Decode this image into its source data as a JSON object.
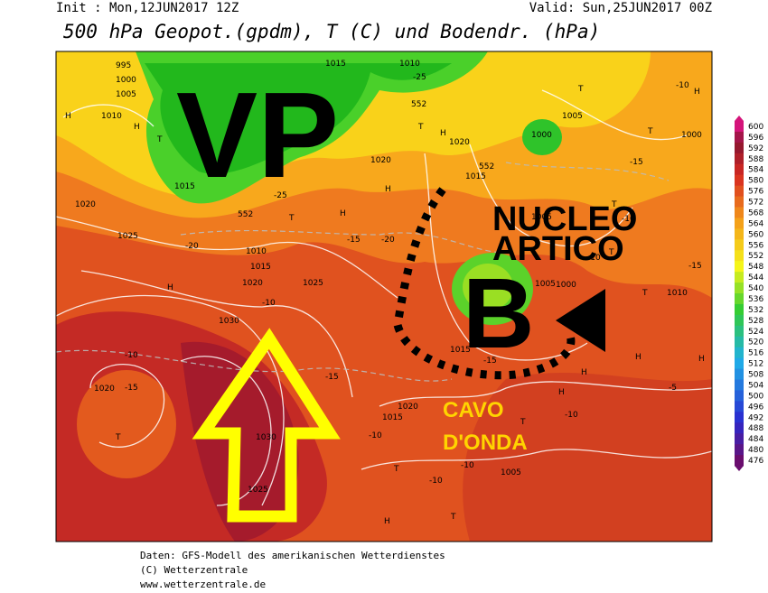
{
  "header": {
    "init": "Init : Mon,12JUN2017 12Z",
    "valid": "Valid: Sun,25JUN2017 00Z",
    "title": "500 hPa Geopot.(gpdm), T (C) und Bodendr. (hPa)"
  },
  "annotations": {
    "vp": "VP",
    "nucleo": "NUCLEO",
    "artico": "ARTICO",
    "b": "B",
    "cavo": "CAVO",
    "onda": "D'ONDA"
  },
  "legend": {
    "values": [
      600,
      596,
      592,
      588,
      584,
      580,
      576,
      572,
      568,
      564,
      560,
      556,
      552,
      548,
      544,
      540,
      536,
      532,
      528,
      524,
      520,
      516,
      512,
      508,
      504,
      500,
      496,
      492,
      488,
      484,
      480,
      476
    ]
  },
  "map_labels": [
    "995",
    "1000",
    "1005",
    "1010",
    "H",
    "H",
    "T",
    "1015",
    "1020",
    "1025",
    "-20",
    "H",
    "1030",
    "-10",
    "1020",
    "1015",
    "1010",
    "T",
    "-25",
    "552",
    "1025",
    "-15",
    "-15",
    "H",
    "1020",
    "H",
    "-20",
    "1015",
    "1010",
    "-25",
    "552",
    "T",
    "H",
    "1020",
    "1015",
    "552",
    "1005",
    "1000",
    "1005",
    "T",
    "1005",
    "1000",
    "-10",
    "H",
    "T",
    "1000",
    "-15",
    "T",
    "-10",
    "T",
    "-10",
    "-15",
    "1010",
    "T",
    "H",
    "H",
    "-5",
    "H",
    "1015",
    "-15",
    "1020",
    "1015",
    "-10",
    "T",
    "-10",
    "T",
    "-10",
    "1005",
    "T",
    "H",
    "1020",
    "-15",
    "T",
    "-10",
    "1030",
    "1025",
    "H",
    "-10"
  ],
  "footer": [
    "Daten: GFS-Modell des amerikanischen Wetterdienstes",
    "(C) Wetterzentrale",
    "www.wetterzentrale.de"
  ]
}
